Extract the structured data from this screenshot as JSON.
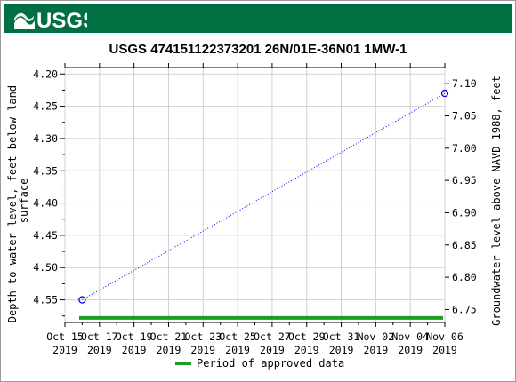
{
  "header": {
    "agency_logo_text": "USGS"
  },
  "chart_data": {
    "type": "line",
    "title": "USGS 474151122373201 26N/01E-36N01   1MW-1",
    "ylabel_left": "Depth to water level, feet below land surface",
    "ylabel_left_lines": [
      "Depth to water level, feet below land",
      "surface"
    ],
    "ylabel_right": "Groundwater level above NAVD 1988, feet",
    "y_left": {
      "min": 4.19,
      "max": 4.585,
      "inverted": true,
      "ticks": [
        "4.20",
        "4.25",
        "4.30",
        "4.35",
        "4.40",
        "4.45",
        "4.50",
        "4.55"
      ]
    },
    "y_right": {
      "min": 6.73,
      "max": 7.125,
      "ticks": [
        "6.75",
        "6.80",
        "6.85",
        "6.90",
        "6.95",
        "7.00",
        "7.05",
        "7.10"
      ]
    },
    "x": {
      "min": "2019-10-15",
      "max": "2019-11-06",
      "ticks": [
        {
          "date": "2019-10-15",
          "line1": "Oct 15",
          "line2": "2019"
        },
        {
          "date": "2019-10-17",
          "line1": "Oct 17",
          "line2": "2019"
        },
        {
          "date": "2019-10-19",
          "line1": "Oct 19",
          "line2": "2019"
        },
        {
          "date": "2019-10-21",
          "line1": "Oct 21",
          "line2": "2019"
        },
        {
          "date": "2019-10-23",
          "line1": "Oct 23",
          "line2": "2019"
        },
        {
          "date": "2019-10-25",
          "line1": "Oct 25",
          "line2": "2019"
        },
        {
          "date": "2019-10-27",
          "line1": "Oct 27",
          "line2": "2019"
        },
        {
          "date": "2019-10-29",
          "line1": "Oct 29",
          "line2": "2019"
        },
        {
          "date": "2019-10-31",
          "line1": "Oct 31",
          "line2": "2019"
        },
        {
          "date": "2019-11-02",
          "line1": "Nov 02",
          "line2": "2019"
        },
        {
          "date": "2019-11-04",
          "line1": "Nov 04",
          "line2": "2019"
        },
        {
          "date": "2019-11-06",
          "line1": "Nov 06",
          "line2": "2019"
        }
      ]
    },
    "series": [
      {
        "color": "#0000ff",
        "line_style": "dotted",
        "marker": "open-circle",
        "points": [
          {
            "date": "2019-10-16",
            "depth": 4.55
          },
          {
            "date": "2019-11-06",
            "depth": 4.23
          }
        ]
      }
    ],
    "approved_period": {
      "start": "2019-10-16",
      "end": "2019-11-06",
      "depth": 4.578,
      "color": "#1e9e1e"
    },
    "legend": {
      "label": "Period of approved data",
      "color": "#1e9e1e",
      "placement": "bottom-center"
    },
    "grid": true
  }
}
